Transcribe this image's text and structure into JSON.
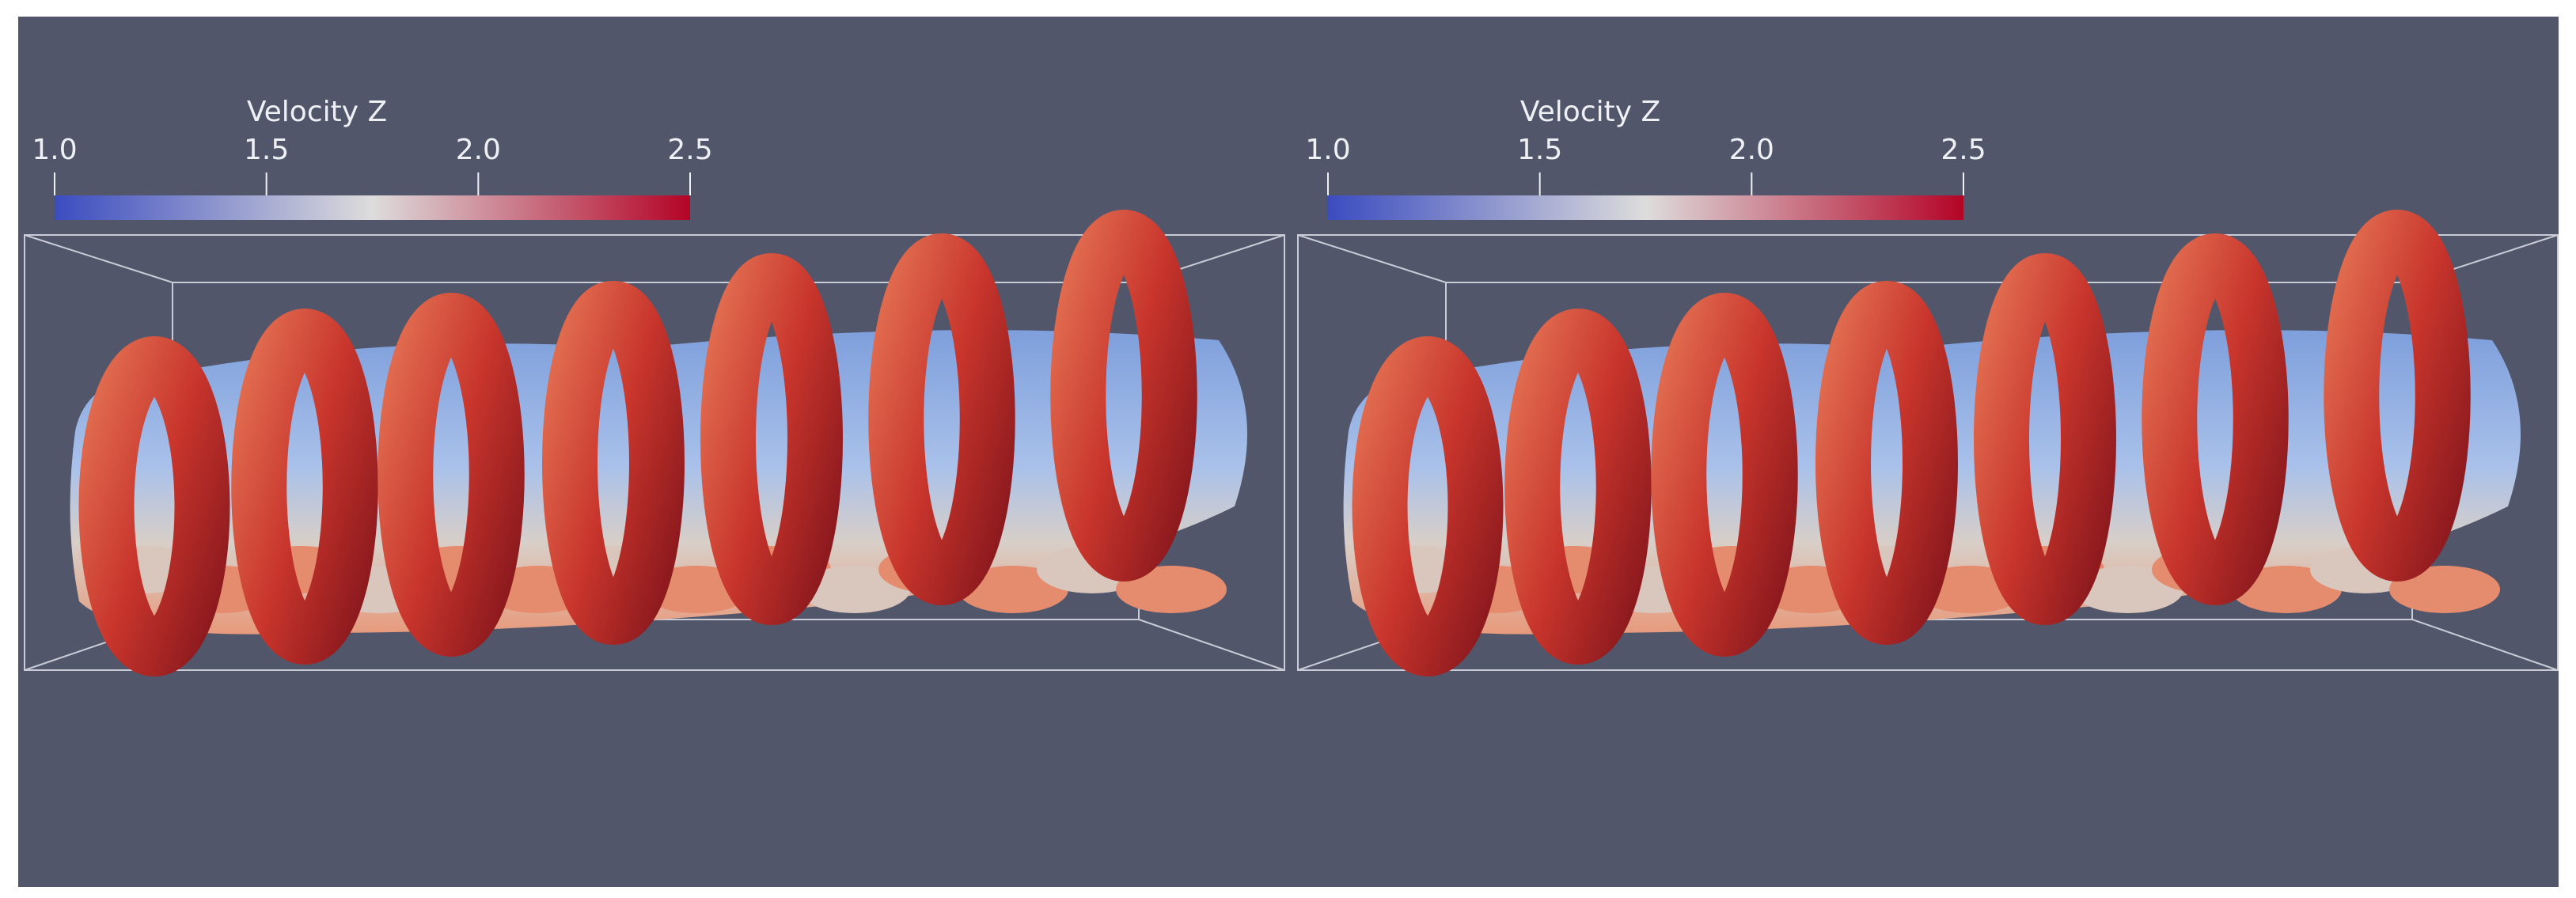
{
  "panels": [
    {
      "colorbar": {
        "title": "Velocity Z",
        "range": [
          1,
          2.5
        ],
        "ticks": [
          {
            "value": 1,
            "label": "1.0"
          },
          {
            "value": 1.5,
            "label": "1.5"
          },
          {
            "value": 2,
            "label": "2.0"
          },
          {
            "value": 2.5,
            "label": "2.5"
          }
        ],
        "colormap": [
          "#3b4cc0",
          "#dddcdc",
          "#b40426"
        ]
      }
    },
    {
      "colorbar": {
        "title": "Velocity Z",
        "range": [
          1,
          2.5
        ],
        "ticks": [
          {
            "value": 1,
            "label": "1.0"
          },
          {
            "value": 1.5,
            "label": "1.5"
          },
          {
            "value": 2,
            "label": "2.0"
          },
          {
            "value": 2.5,
            "label": "2.5"
          }
        ],
        "colormap": [
          "#3b4cc0",
          "#dddcdc",
          "#b40426"
        ]
      }
    }
  ]
}
